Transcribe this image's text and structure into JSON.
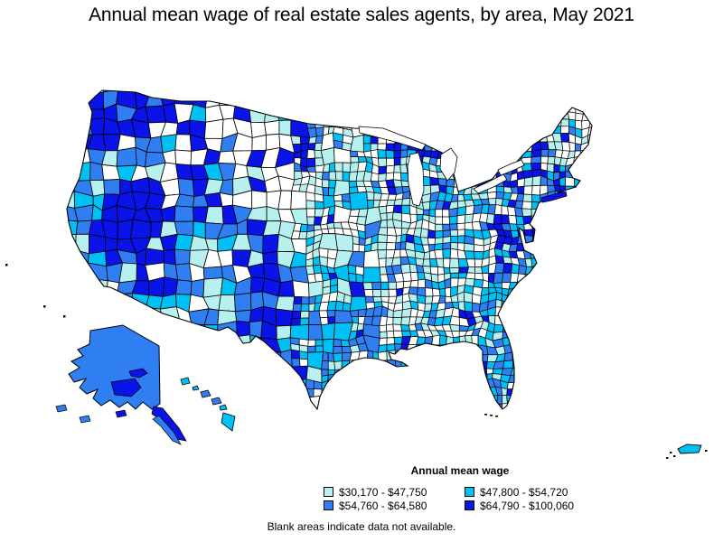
{
  "title": "Annual mean wage of real estate sales agents, by area, May 2021",
  "legend": {
    "title": "Annual mean wage",
    "items": [
      {
        "label": "$30,170 - $47,750",
        "color": "#b7f1ef"
      },
      {
        "label": "$47,800 - $54,720",
        "color": "#00c0f5"
      },
      {
        "label": "$54,760 - $64,580",
        "color": "#2f7ff2"
      },
      {
        "label": "$64,790 - $100,060",
        "color": "#0b14e8"
      }
    ]
  },
  "footer": "Blank areas indicate data not available.",
  "map": {
    "no_data_color": "#ffffff",
    "border_color": "#000000",
    "background": "#ffffff"
  },
  "chart_data": {
    "type": "choropleth_map",
    "title": "Annual mean wage of real estate sales agents, by area, May 2021",
    "measure": "Annual mean wage",
    "unit": "USD",
    "period": "May 2021",
    "geography": "United States, by area (metropolitan / nonmetropolitan areas), with Alaska, Hawaii and Puerto Rico insets",
    "classes": [
      {
        "label": "$30,170 - $47,750",
        "min": 30170,
        "max": 47750,
        "color": "#b7f1ef"
      },
      {
        "label": "$47,800 - $54,720",
        "min": 47800,
        "max": 54720,
        "color": "#00c0f5"
      },
      {
        "label": "$54,760 - $64,580",
        "min": 54760,
        "max": 64580,
        "color": "#2f7ff2"
      },
      {
        "label": "$64,790 - $100,060",
        "min": 64790,
        "max": 100060,
        "color": "#0b14e8"
      }
    ],
    "no_data": {
      "label": "Blank areas indicate data not available.",
      "color": "#ffffff"
    },
    "legend_position": "bottom-center"
  }
}
